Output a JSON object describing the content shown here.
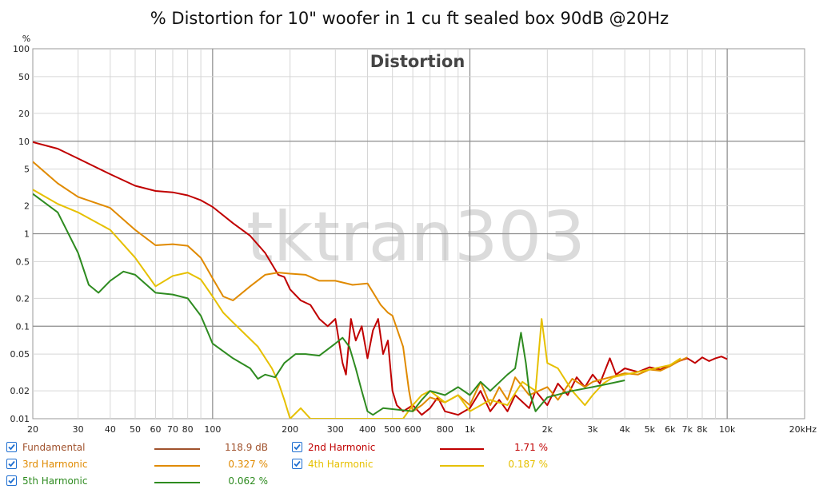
{
  "chart_data": {
    "type": "line",
    "title": "% Distortion for 10\" woofer in 1 cu ft sealed box 90dB @20Hz",
    "inner_title": "Distortion",
    "watermark": "tktran303",
    "ylabel": "%",
    "xlabel": "",
    "x_scale": "log",
    "y_scale": "log",
    "xlim": [
      20,
      20000
    ],
    "ylim": [
      0.01,
      100
    ],
    "x_ticks": [
      {
        "v": 20,
        "l": "20"
      },
      {
        "v": 30,
        "l": "30"
      },
      {
        "v": 40,
        "l": "40"
      },
      {
        "v": 50,
        "l": "50"
      },
      {
        "v": 60,
        "l": "60"
      },
      {
        "v": 70,
        "l": "70"
      },
      {
        "v": 80,
        "l": "80"
      },
      {
        "v": 100,
        "l": "100"
      },
      {
        "v": 200,
        "l": "200"
      },
      {
        "v": 300,
        "l": "300"
      },
      {
        "v": 400,
        "l": "400"
      },
      {
        "v": 500,
        "l": "500"
      },
      {
        "v": 600,
        "l": "600"
      },
      {
        "v": 800,
        "l": "800"
      },
      {
        "v": 1000,
        "l": "1k"
      },
      {
        "v": 2000,
        "l": "2k"
      },
      {
        "v": 3000,
        "l": "3k"
      },
      {
        "v": 4000,
        "l": "4k"
      },
      {
        "v": 5000,
        "l": "5k"
      },
      {
        "v": 6000,
        "l": "6k"
      },
      {
        "v": 7000,
        "l": "7k"
      },
      {
        "v": 8000,
        "l": "8k"
      },
      {
        "v": 10000,
        "l": "10k"
      },
      {
        "v": 20000,
        "l": "20kHz"
      }
    ],
    "y_ticks": [
      {
        "v": 100,
        "l": "100"
      },
      {
        "v": 50,
        "l": "50"
      },
      {
        "v": 20,
        "l": "20"
      },
      {
        "v": 10,
        "l": "10"
      },
      {
        "v": 5,
        "l": "5"
      },
      {
        "v": 2,
        "l": "2"
      },
      {
        "v": 1,
        "l": "1"
      },
      {
        "v": 0.5,
        "l": "0.5"
      },
      {
        "v": 0.2,
        "l": "0.2"
      },
      {
        "v": 0.1,
        "l": "0.1"
      },
      {
        "v": 0.05,
        "l": "0.05"
      },
      {
        "v": 0.02,
        "l": "0.02"
      },
      {
        "v": 0.01,
        "l": "0.01"
      }
    ],
    "grid": true,
    "legend_position": "bottom",
    "series": [
      {
        "name": "2nd Harmonic",
        "color": "#c00000",
        "points": [
          [
            20,
            9.8
          ],
          [
            25,
            8.3
          ],
          [
            30,
            6.5
          ],
          [
            40,
            4.4
          ],
          [
            50,
            3.3
          ],
          [
            60,
            2.9
          ],
          [
            70,
            2.8
          ],
          [
            80,
            2.6
          ],
          [
            90,
            2.3
          ],
          [
            100,
            1.95
          ],
          [
            120,
            1.3
          ],
          [
            140,
            0.95
          ],
          [
            160,
            0.62
          ],
          [
            180,
            0.36
          ],
          [
            190,
            0.34
          ],
          [
            200,
            0.25
          ],
          [
            220,
            0.19
          ],
          [
            240,
            0.17
          ],
          [
            260,
            0.12
          ],
          [
            280,
            0.1
          ],
          [
            300,
            0.12
          ],
          [
            320,
            0.04
          ],
          [
            330,
            0.03
          ],
          [
            345,
            0.12
          ],
          [
            360,
            0.07
          ],
          [
            380,
            0.1
          ],
          [
            400,
            0.045
          ],
          [
            420,
            0.09
          ],
          [
            440,
            0.12
          ],
          [
            460,
            0.05
          ],
          [
            480,
            0.07
          ],
          [
            500,
            0.02
          ],
          [
            520,
            0.014
          ],
          [
            550,
            0.012
          ],
          [
            600,
            0.014
          ],
          [
            650,
            0.011
          ],
          [
            700,
            0.013
          ],
          [
            750,
            0.017
          ],
          [
            800,
            0.012
          ],
          [
            900,
            0.011
          ],
          [
            1000,
            0.013
          ],
          [
            1100,
            0.02
          ],
          [
            1200,
            0.012
          ],
          [
            1300,
            0.016
          ],
          [
            1400,
            0.012
          ],
          [
            1500,
            0.018
          ],
          [
            1700,
            0.013
          ],
          [
            1800,
            0.02
          ],
          [
            2000,
            0.014
          ],
          [
            2200,
            0.024
          ],
          [
            2400,
            0.018
          ],
          [
            2600,
            0.028
          ],
          [
            2800,
            0.022
          ],
          [
            3000,
            0.03
          ],
          [
            3200,
            0.024
          ],
          [
            3500,
            0.045
          ],
          [
            3700,
            0.03
          ],
          [
            4000,
            0.035
          ],
          [
            4500,
            0.032
          ],
          [
            5000,
            0.036
          ],
          [
            5500,
            0.034
          ],
          [
            6000,
            0.038
          ],
          [
            6500,
            0.042
          ],
          [
            7000,
            0.045
          ],
          [
            7500,
            0.04
          ],
          [
            8000,
            0.046
          ],
          [
            8500,
            0.042
          ],
          [
            9000,
            0.045
          ],
          [
            9500,
            0.047
          ],
          [
            10000,
            0.044
          ]
        ]
      },
      {
        "name": "3rd Harmonic",
        "color": "#e08a00",
        "points": [
          [
            20,
            6.0
          ],
          [
            25,
            3.5
          ],
          [
            30,
            2.5
          ],
          [
            40,
            1.9
          ],
          [
            50,
            1.1
          ],
          [
            60,
            0.75
          ],
          [
            70,
            0.77
          ],
          [
            80,
            0.74
          ],
          [
            90,
            0.55
          ],
          [
            100,
            0.33
          ],
          [
            110,
            0.21
          ],
          [
            120,
            0.19
          ],
          [
            140,
            0.27
          ],
          [
            160,
            0.36
          ],
          [
            180,
            0.38
          ],
          [
            200,
            0.37
          ],
          [
            230,
            0.36
          ],
          [
            260,
            0.31
          ],
          [
            300,
            0.31
          ],
          [
            350,
            0.28
          ],
          [
            400,
            0.29
          ],
          [
            450,
            0.17
          ],
          [
            480,
            0.14
          ],
          [
            500,
            0.13
          ],
          [
            550,
            0.06
          ],
          [
            580,
            0.02
          ],
          [
            600,
            0.012
          ],
          [
            650,
            0.014
          ],
          [
            700,
            0.017
          ],
          [
            800,
            0.015
          ],
          [
            900,
            0.018
          ],
          [
            1000,
            0.014
          ],
          [
            1100,
            0.025
          ],
          [
            1200,
            0.014
          ],
          [
            1300,
            0.022
          ],
          [
            1400,
            0.016
          ],
          [
            1500,
            0.028
          ],
          [
            1700,
            0.018
          ],
          [
            2000,
            0.022
          ],
          [
            2200,
            0.016
          ],
          [
            2500,
            0.027
          ],
          [
            2800,
            0.022
          ],
          [
            3000,
            0.025
          ],
          [
            3500,
            0.028
          ],
          [
            4000,
            0.031
          ],
          [
            4500,
            0.03
          ],
          [
            5000,
            0.034
          ],
          [
            5500,
            0.033
          ],
          [
            6000,
            0.037
          ],
          [
            6500,
            0.042
          ],
          [
            7000,
            0.046
          ]
        ]
      },
      {
        "name": "4th Harmonic",
        "color": "#e6c000",
        "points": [
          [
            20,
            3.0
          ],
          [
            25,
            2.1
          ],
          [
            30,
            1.7
          ],
          [
            40,
            1.1
          ],
          [
            50,
            0.55
          ],
          [
            60,
            0.27
          ],
          [
            70,
            0.35
          ],
          [
            80,
            0.38
          ],
          [
            90,
            0.32
          ],
          [
            100,
            0.21
          ],
          [
            110,
            0.14
          ],
          [
            120,
            0.11
          ],
          [
            150,
            0.06
          ],
          [
            170,
            0.035
          ],
          [
            180,
            0.025
          ],
          [
            190,
            0.016
          ],
          [
            200,
            0.01
          ],
          [
            220,
            0.013
          ],
          [
            240,
            0.01
          ],
          [
            550,
            0.01
          ],
          [
            600,
            0.014
          ],
          [
            650,
            0.018
          ],
          [
            700,
            0.02
          ],
          [
            800,
            0.015
          ],
          [
            900,
            0.018
          ],
          [
            1000,
            0.012
          ],
          [
            1200,
            0.016
          ],
          [
            1400,
            0.014
          ],
          [
            1600,
            0.025
          ],
          [
            1800,
            0.02
          ],
          [
            1900,
            0.12
          ],
          [
            2000,
            0.04
          ],
          [
            2200,
            0.035
          ],
          [
            2500,
            0.02
          ],
          [
            2800,
            0.014
          ],
          [
            3000,
            0.018
          ],
          [
            3300,
            0.024
          ],
          [
            3600,
            0.028
          ],
          [
            4000,
            0.03
          ],
          [
            4500,
            0.032
          ],
          [
            5000,
            0.034
          ],
          [
            6000,
            0.038
          ],
          [
            6600,
            0.045
          ]
        ]
      },
      {
        "name": "5th Harmonic",
        "color": "#2e8b20",
        "points": [
          [
            20,
            2.7
          ],
          [
            25,
            1.7
          ],
          [
            30,
            0.62
          ],
          [
            33,
            0.28
          ],
          [
            36,
            0.23
          ],
          [
            40,
            0.31
          ],
          [
            45,
            0.39
          ],
          [
            50,
            0.36
          ],
          [
            60,
            0.23
          ],
          [
            70,
            0.22
          ],
          [
            80,
            0.2
          ],
          [
            90,
            0.13
          ],
          [
            100,
            0.065
          ],
          [
            120,
            0.045
          ],
          [
            140,
            0.035
          ],
          [
            150,
            0.027
          ],
          [
            160,
            0.03
          ],
          [
            175,
            0.028
          ],
          [
            190,
            0.04
          ],
          [
            210,
            0.05
          ],
          [
            230,
            0.05
          ],
          [
            260,
            0.048
          ],
          [
            300,
            0.065
          ],
          [
            320,
            0.075
          ],
          [
            340,
            0.06
          ],
          [
            360,
            0.035
          ],
          [
            380,
            0.02
          ],
          [
            400,
            0.012
          ],
          [
            420,
            0.011
          ],
          [
            460,
            0.013
          ],
          [
            600,
            0.012
          ],
          [
            650,
            0.016
          ],
          [
            700,
            0.02
          ],
          [
            800,
            0.018
          ],
          [
            900,
            0.022
          ],
          [
            1000,
            0.018
          ],
          [
            1100,
            0.025
          ],
          [
            1200,
            0.02
          ],
          [
            1400,
            0.03
          ],
          [
            1500,
            0.035
          ],
          [
            1580,
            0.085
          ],
          [
            1650,
            0.04
          ],
          [
            1700,
            0.02
          ],
          [
            1800,
            0.012
          ],
          [
            2000,
            0.017
          ],
          [
            2500,
            0.02
          ],
          [
            3000,
            0.022
          ],
          [
            3500,
            0.024
          ],
          [
            4000,
            0.026
          ]
        ]
      }
    ]
  },
  "legend": [
    {
      "name": "Fundamental",
      "value": "118.9 dB",
      "color": "#a0522d",
      "checked": true
    },
    {
      "name": "2nd Harmonic",
      "value": "1.71 %",
      "color": "#c00000",
      "checked": true
    },
    {
      "name": "3rd Harmonic",
      "value": "0.327 %",
      "color": "#e08a00",
      "checked": true
    },
    {
      "name": "4th Harmonic",
      "value": "0.187 %",
      "color": "#e6c000",
      "checked": true
    },
    {
      "name": "5th Harmonic",
      "value": "0.062 %",
      "color": "#2e8b20",
      "checked": true
    }
  ]
}
